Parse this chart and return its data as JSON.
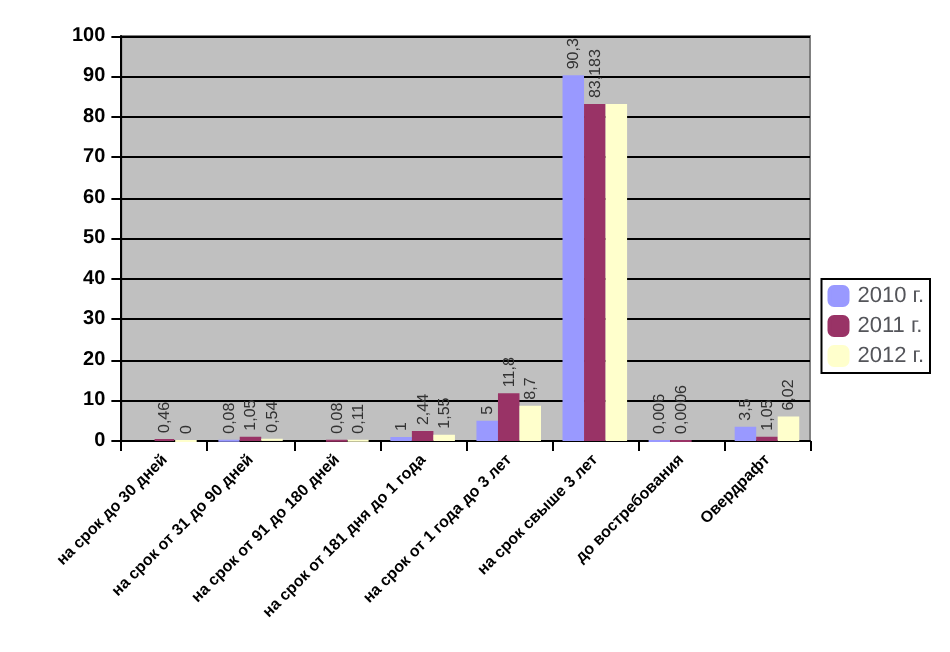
{
  "chart_data": {
    "type": "bar",
    "categories": [
      "на срок до 30 дней",
      "на срок от 31 до 90 дней",
      "на срок от 91 до 180 дней",
      "на срок от 181 дня до 1 года",
      "на срок от 1 года до 3 лет",
      "на срок свыше 3 лет",
      "до востребования",
      "Овердрафт"
    ],
    "series": [
      {
        "name": "2010 г.",
        "color": "#9999ff",
        "values": [
          null,
          0.08,
          null,
          1,
          5,
          90.3,
          0.006,
          3.5
        ],
        "value_labels": [
          null,
          "0,08",
          null,
          "1",
          "5",
          "90,3",
          "0,006",
          "3,5"
        ]
      },
      {
        "name": "2011 г.",
        "color": "#993366",
        "values": [
          0.46,
          1.05,
          0.08,
          2.44,
          11.8,
          83.183,
          0.0006,
          1.05
        ],
        "value_labels": [
          "0,46",
          "1,05",
          "0,08",
          "2,44",
          "11,8",
          "83,183",
          "0,0006",
          "1,05"
        ]
      },
      {
        "name": "2012 г.",
        "color": "#ffffcc",
        "values": [
          0,
          0.54,
          0.11,
          1.55,
          8.7,
          83.2,
          null,
          6.02
        ],
        "value_labels": [
          "0",
          "0,54",
          "0,11",
          "1,55",
          "8,7",
          null,
          null,
          "6,02"
        ]
      }
    ],
    "ylim": [
      0,
      100
    ],
    "yticks": [
      0,
      10,
      20,
      30,
      40,
      50,
      60,
      70,
      80,
      90,
      100
    ],
    "grid": "y",
    "legend": "right"
  }
}
